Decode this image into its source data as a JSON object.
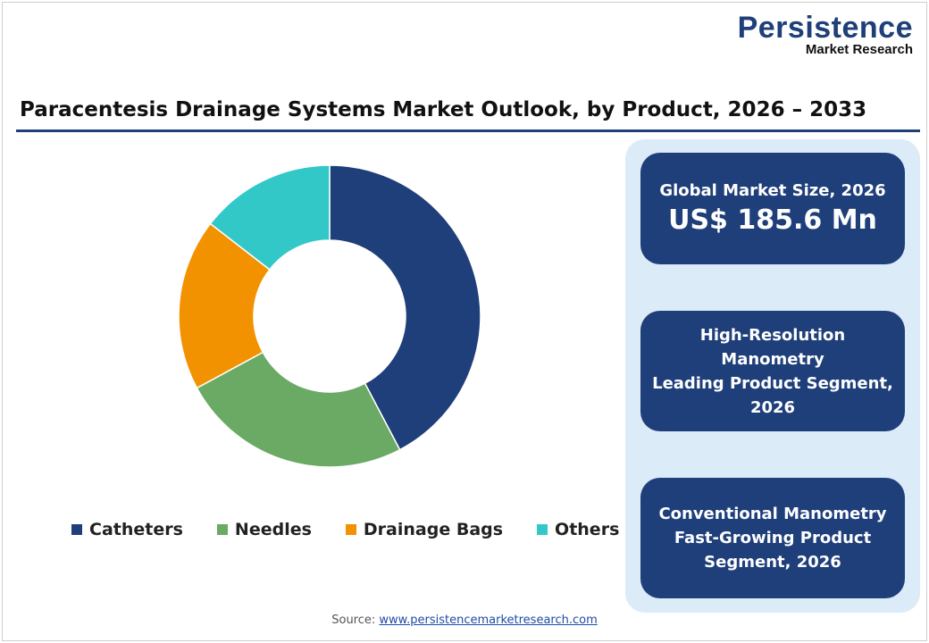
{
  "logo": {
    "name": "Persistence",
    "sub": "Market Research"
  },
  "title": "Paracentesis Drainage Systems Market Outlook, by Product, 2026 – 2033",
  "chart_data": {
    "type": "pie",
    "donut": true,
    "categories": [
      "Catheters",
      "Needles",
      "Drainage Bags",
      "Others"
    ],
    "values": [
      42.3,
      24.8,
      18.4,
      14.5
    ],
    "unit": "% share (estimated)",
    "colors": [
      "#1f3f7a",
      "#6aaa64",
      "#f39200",
      "#33c8c8"
    ],
    "legend_position": "bottom"
  },
  "panel": {
    "market_size_label": "Global Market Size, 2026",
    "market_size_value": "US$ 185.6 Mn",
    "leading_lines": [
      "High-Resolution",
      "Manometry",
      "Leading Product Segment,",
      "2026"
    ],
    "fast_lines": [
      "Conventional Manometry",
      "Fast-Growing Product",
      "Segment, 2026"
    ]
  },
  "source": {
    "label": "Source:",
    "link": "www.persistencemarketresearch.com"
  }
}
